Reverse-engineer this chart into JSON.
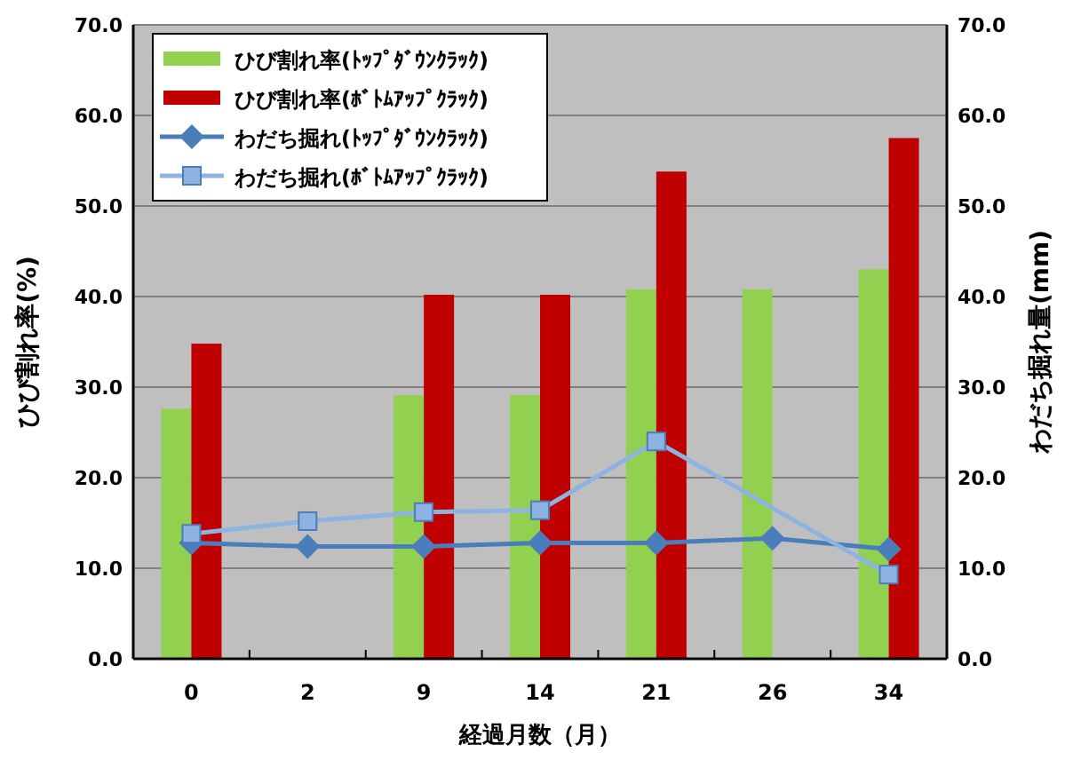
{
  "chart_data": {
    "type": "bar",
    "xlabel": "経過月数（月）",
    "ylabel": "ひび割れ率(%)",
    "y2label": "わだち掘れ量(mm)",
    "categories": [
      "0",
      "2",
      "9",
      "14",
      "21",
      "26",
      "34"
    ],
    "series": [
      {
        "name": "ひび割れ率(ﾄｯﾌﾟﾀﾞｳﾝｸﾗｯｸ)",
        "color": "#92d050",
        "values": [
          27.6,
          null,
          29.1,
          29.1,
          40.8,
          40.8,
          43.0
        ]
      },
      {
        "name": "ひび割れ率(ﾎﾞﾄﾑｱｯﾌﾟｸﾗｯｸ)",
        "color": "#c00000",
        "values": [
          34.8,
          null,
          40.2,
          40.2,
          53.8,
          null,
          57.5
        ]
      },
      {
        "name": "わだち掘れ(ﾄｯﾌﾟﾀﾞｳﾝｸﾗｯｸ)",
        "type": "line",
        "marker": "diamond",
        "color": "#4a7ebb",
        "values": [
          12.8,
          12.4,
          12.4,
          12.8,
          12.8,
          13.3,
          12.1
        ]
      },
      {
        "name": "わだち掘れ(ﾎﾞﾄﾑｱｯﾌﾟｸﾗｯｸ)",
        "type": "line",
        "marker": "square",
        "color": "#8db3e2",
        "values": [
          13.8,
          15.2,
          16.2,
          16.4,
          24.0,
          null,
          9.3
        ]
      }
    ],
    "ylim": [
      0,
      70
    ],
    "yticks": [
      {
        "value": 0,
        "label": "0.0"
      },
      {
        "value": 10,
        "label": "10.0"
      },
      {
        "value": 20,
        "label": "20.0"
      },
      {
        "value": 30,
        "label": "30.0"
      },
      {
        "value": 40,
        "label": "40.0"
      },
      {
        "value": 50,
        "label": "50.0"
      },
      {
        "value": 60,
        "label": "60.0"
      },
      {
        "value": 70,
        "label": "70.0"
      }
    ],
    "y2lim": [
      0,
      70
    ],
    "y2ticks": [
      {
        "value": 0,
        "label": "0.0"
      },
      {
        "value": 10,
        "label": "10.0"
      },
      {
        "value": 20,
        "label": "20.0"
      },
      {
        "value": 30,
        "label": "30.0"
      },
      {
        "value": 40,
        "label": "40.0"
      },
      {
        "value": 50,
        "label": "50.0"
      },
      {
        "value": 60,
        "label": "60.0"
      },
      {
        "value": 70,
        "label": "70.0"
      }
    ],
    "grid": "y",
    "legend": "top left"
  }
}
